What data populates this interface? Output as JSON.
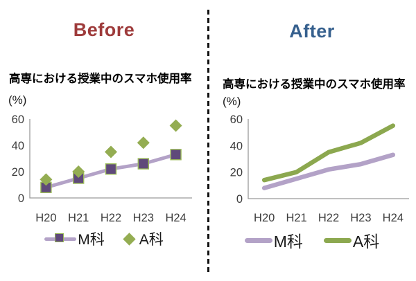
{
  "page": {
    "background": "#ffffff",
    "divider_color": "#111111"
  },
  "panels": {
    "before": {
      "heading": "Before",
      "heading_color": "#9E3B3B",
      "chart_title": "高専における授業中のスマホ使用率",
      "unit_label": "(%)"
    },
    "after": {
      "heading": "After",
      "heading_color": "#36608E",
      "chart_title": "高専における授業中のスマホ使用率",
      "unit_label": "(%)"
    }
  },
  "chart_data": [
    {
      "id": "before",
      "type": "line",
      "title": "高専における授業中のスマホ使用率",
      "unit": "(%)",
      "categories": [
        "H20",
        "H21",
        "H22",
        "H23",
        "H24"
      ],
      "series": [
        {
          "name": "M科",
          "values": [
            8,
            15,
            22,
            26,
            33
          ],
          "color": "#B3A2C7",
          "line": true,
          "line_width": 5,
          "marker": "square",
          "marker_fill": "#5F497A",
          "marker_stroke": "#9BBB59"
        },
        {
          "name": "A科",
          "values": [
            14,
            20,
            35,
            42,
            55
          ],
          "color": "#94AD52",
          "line": false,
          "line_width": 0,
          "marker": "diamond",
          "marker_fill": "#94AD52",
          "marker_stroke": "none"
        }
      ],
      "ylim": [
        0,
        60
      ],
      "yticks": [
        0,
        20,
        40,
        60
      ],
      "grid": false,
      "legend_position": "bottom"
    },
    {
      "id": "after",
      "type": "line",
      "title": "高専における授業中のスマホ使用率",
      "unit": "(%)",
      "categories": [
        "H20",
        "H21",
        "H22",
        "H23",
        "H24"
      ],
      "series": [
        {
          "name": "M科",
          "values": [
            8,
            15,
            22,
            26,
            33
          ],
          "color": "#B3A2C7",
          "line": true,
          "line_width": 6.5,
          "marker": "none",
          "marker_fill": "none",
          "marker_stroke": "none"
        },
        {
          "name": "A科",
          "values": [
            14,
            20,
            35,
            42,
            55
          ],
          "color": "#8CA84F",
          "line": true,
          "line_width": 6.5,
          "marker": "none",
          "marker_fill": "none",
          "marker_stroke": "none"
        }
      ],
      "ylim": [
        0,
        60
      ],
      "yticks": [
        0,
        20,
        40,
        60
      ],
      "grid": false,
      "legend_position": "bottom"
    }
  ]
}
